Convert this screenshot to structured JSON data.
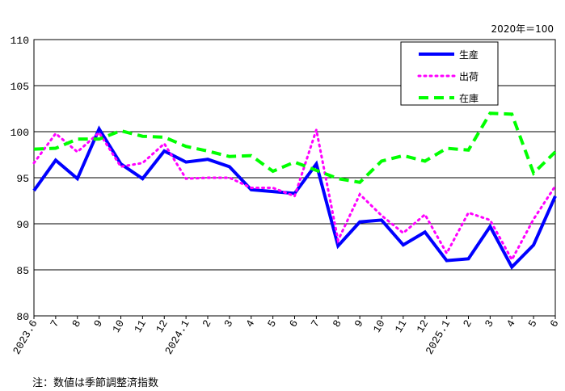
{
  "base_label": "2020年＝100",
  "note": "注：数値は季節調整済指数",
  "chart_data": {
    "type": "line",
    "ylim": [
      80,
      110
    ],
    "yticks": [
      80,
      85,
      90,
      95,
      100,
      105,
      110
    ],
    "grid": true,
    "legend_position": "top-right",
    "categories": [
      "2023.6",
      "7",
      "8",
      "9",
      "10",
      "11",
      "12",
      "2024.1",
      "2",
      "3",
      "4",
      "5",
      "6",
      "7",
      "8",
      "9",
      "10",
      "11",
      "12",
      "2025.1",
      "2",
      "3",
      "4",
      "5",
      "6"
    ],
    "series": [
      {
        "name": "生産",
        "color": "#0000ff",
        "style": "solid",
        "values": [
          93.6,
          96.9,
          94.9,
          100.3,
          96.5,
          94.9,
          97.9,
          96.7,
          97.0,
          96.2,
          93.7,
          93.5,
          93.3,
          96.5,
          87.6,
          90.2,
          90.4,
          87.7,
          89.1,
          86.0,
          86.2,
          89.7,
          85.3,
          87.7,
          93.0
        ]
      },
      {
        "name": "出荷",
        "color": "#ff00ff",
        "style": "dotted",
        "values": [
          96.6,
          99.8,
          97.8,
          99.9,
          96.2,
          96.6,
          98.7,
          94.9,
          95.0,
          95.0,
          93.9,
          93.9,
          93.0,
          100.2,
          88.2,
          93.2,
          90.9,
          89.0,
          91.0,
          86.8,
          91.2,
          90.4,
          86.1,
          90.5,
          94.1
        ]
      },
      {
        "name": "在庫",
        "color": "#00ff00",
        "style": "dashed",
        "values": [
          98.1,
          98.2,
          99.2,
          99.2,
          100.1,
          99.5,
          99.4,
          98.4,
          97.9,
          97.3,
          97.4,
          95.7,
          96.7,
          95.8,
          94.9,
          94.5,
          96.8,
          97.4,
          96.8,
          98.2,
          98.0,
          102.0,
          101.9,
          95.5,
          97.8
        ]
      }
    ]
  }
}
